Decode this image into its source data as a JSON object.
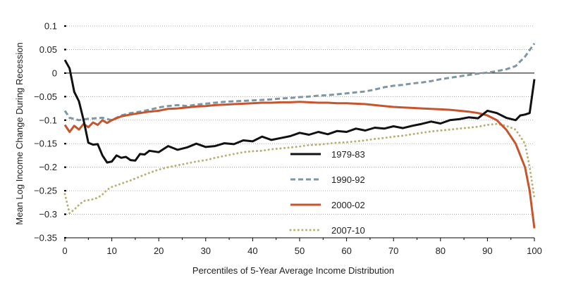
{
  "chart_data": {
    "type": "line",
    "title": "",
    "xlabel": "Percentiles of 5-Year Average Income Distribution",
    "ylabel": "Mean Log Income Change During Recession",
    "xlim": [
      0,
      100
    ],
    "ylim": [
      -0.35,
      0.1
    ],
    "x_ticks": [
      0,
      10,
      20,
      30,
      40,
      50,
      60,
      70,
      80,
      90,
      100
    ],
    "x_tick_labels": [
      "0",
      "10",
      "20",
      "30",
      "40",
      "50",
      "60",
      "70",
      "80",
      "90",
      "100"
    ],
    "y_ticks": [
      0.1,
      0.05,
      0,
      -0.05,
      -0.1,
      -0.15,
      -0.2,
      -0.25,
      -0.3,
      -0.35
    ],
    "y_tick_labels": [
      "0.1",
      "0.05",
      "0",
      "−0.05",
      "−0.1",
      "−0.15",
      "−0.2",
      "−0.25",
      "−0.3",
      "−0.35"
    ],
    "grid": "horizontal dotted",
    "zero_line": true,
    "legend_position": "center",
    "series": [
      {
        "name": "1979-83",
        "color": "#111111",
        "style": "solid",
        "points": [
          [
            0,
            0.028
          ],
          [
            1,
            0.01
          ],
          [
            2,
            -0.04
          ],
          [
            3,
            -0.06
          ],
          [
            4,
            -0.1
          ],
          [
            5,
            -0.148
          ],
          [
            6,
            -0.152
          ],
          [
            7,
            -0.151
          ],
          [
            8,
            -0.175
          ],
          [
            9,
            -0.19
          ],
          [
            10,
            -0.188
          ],
          [
            11,
            -0.175
          ],
          [
            12,
            -0.18
          ],
          [
            13,
            -0.178
          ],
          [
            14,
            -0.185
          ],
          [
            15,
            -0.186
          ],
          [
            16,
            -0.172
          ],
          [
            17,
            -0.173
          ],
          [
            18,
            -0.165
          ],
          [
            20,
            -0.168
          ],
          [
            22,
            -0.155
          ],
          [
            24,
            -0.163
          ],
          [
            26,
            -0.158
          ],
          [
            28,
            -0.15
          ],
          [
            30,
            -0.157
          ],
          [
            32,
            -0.155
          ],
          [
            34,
            -0.149
          ],
          [
            36,
            -0.151
          ],
          [
            38,
            -0.143
          ],
          [
            40,
            -0.145
          ],
          [
            42,
            -0.135
          ],
          [
            44,
            -0.142
          ],
          [
            46,
            -0.138
          ],
          [
            48,
            -0.134
          ],
          [
            50,
            -0.127
          ],
          [
            52,
            -0.131
          ],
          [
            54,
            -0.125
          ],
          [
            56,
            -0.13
          ],
          [
            58,
            -0.123
          ],
          [
            60,
            -0.125
          ],
          [
            62,
            -0.118
          ],
          [
            64,
            -0.122
          ],
          [
            66,
            -0.116
          ],
          [
            68,
            -0.118
          ],
          [
            70,
            -0.113
          ],
          [
            72,
            -0.117
          ],
          [
            74,
            -0.112
          ],
          [
            76,
            -0.108
          ],
          [
            78,
            -0.103
          ],
          [
            80,
            -0.107
          ],
          [
            82,
            -0.1
          ],
          [
            84,
            -0.098
          ],
          [
            86,
            -0.094
          ],
          [
            88,
            -0.096
          ],
          [
            90,
            -0.08
          ],
          [
            92,
            -0.085
          ],
          [
            94,
            -0.095
          ],
          [
            96,
            -0.1
          ],
          [
            97,
            -0.09
          ],
          [
            98,
            -0.088
          ],
          [
            99,
            -0.085
          ],
          [
            100,
            -0.013
          ]
        ]
      },
      {
        "name": "1990-92",
        "color": "#7f97a3",
        "style": "dashed",
        "points": [
          [
            0,
            -0.08
          ],
          [
            1,
            -0.095
          ],
          [
            3,
            -0.1
          ],
          [
            5,
            -0.097
          ],
          [
            8,
            -0.095
          ],
          [
            10,
            -0.1
          ],
          [
            12,
            -0.09
          ],
          [
            14,
            -0.085
          ],
          [
            16,
            -0.082
          ],
          [
            18,
            -0.078
          ],
          [
            20,
            -0.073
          ],
          [
            22,
            -0.07
          ],
          [
            24,
            -0.068
          ],
          [
            26,
            -0.07
          ],
          [
            28,
            -0.067
          ],
          [
            30,
            -0.065
          ],
          [
            32,
            -0.063
          ],
          [
            34,
            -0.061
          ],
          [
            36,
            -0.06
          ],
          [
            38,
            -0.059
          ],
          [
            40,
            -0.058
          ],
          [
            42,
            -0.057
          ],
          [
            44,
            -0.056
          ],
          [
            46,
            -0.054
          ],
          [
            48,
            -0.053
          ],
          [
            50,
            -0.051
          ],
          [
            52,
            -0.05
          ],
          [
            54,
            -0.048
          ],
          [
            56,
            -0.047
          ],
          [
            58,
            -0.045
          ],
          [
            60,
            -0.043
          ],
          [
            62,
            -0.041
          ],
          [
            64,
            -0.039
          ],
          [
            66,
            -0.035
          ],
          [
            68,
            -0.03
          ],
          [
            70,
            -0.027
          ],
          [
            72,
            -0.025
          ],
          [
            74,
            -0.022
          ],
          [
            76,
            -0.02
          ],
          [
            78,
            -0.017
          ],
          [
            80,
            -0.013
          ],
          [
            82,
            -0.01
          ],
          [
            84,
            -0.007
          ],
          [
            86,
            -0.004
          ],
          [
            88,
            -0.001
          ],
          [
            90,
            0.001
          ],
          [
            92,
            0.004
          ],
          [
            94,
            0.008
          ],
          [
            96,
            0.015
          ],
          [
            98,
            0.035
          ],
          [
            100,
            0.063
          ]
        ]
      },
      {
        "name": "2000-02",
        "color": "#c6552e",
        "style": "solid",
        "points": [
          [
            0,
            -0.11
          ],
          [
            1,
            -0.125
          ],
          [
            2,
            -0.112
          ],
          [
            3,
            -0.12
          ],
          [
            4,
            -0.108
          ],
          [
            5,
            -0.115
          ],
          [
            6,
            -0.105
          ],
          [
            7,
            -0.11
          ],
          [
            8,
            -0.1
          ],
          [
            9,
            -0.106
          ],
          [
            10,
            -0.1
          ],
          [
            12,
            -0.092
          ],
          [
            14,
            -0.088
          ],
          [
            16,
            -0.085
          ],
          [
            18,
            -0.082
          ],
          [
            20,
            -0.08
          ],
          [
            22,
            -0.076
          ],
          [
            24,
            -0.075
          ],
          [
            26,
            -0.073
          ],
          [
            28,
            -0.071
          ],
          [
            30,
            -0.07
          ],
          [
            32,
            -0.068
          ],
          [
            34,
            -0.067
          ],
          [
            36,
            -0.066
          ],
          [
            38,
            -0.065
          ],
          [
            40,
            -0.064
          ],
          [
            42,
            -0.063
          ],
          [
            44,
            -0.063
          ],
          [
            46,
            -0.062
          ],
          [
            48,
            -0.062
          ],
          [
            50,
            -0.061
          ],
          [
            52,
            -0.062
          ],
          [
            54,
            -0.063
          ],
          [
            56,
            -0.063
          ],
          [
            58,
            -0.064
          ],
          [
            60,
            -0.064
          ],
          [
            62,
            -0.065
          ],
          [
            64,
            -0.066
          ],
          [
            66,
            -0.068
          ],
          [
            68,
            -0.07
          ],
          [
            70,
            -0.072
          ],
          [
            72,
            -0.073
          ],
          [
            74,
            -0.074
          ],
          [
            76,
            -0.075
          ],
          [
            78,
            -0.076
          ],
          [
            80,
            -0.077
          ],
          [
            82,
            -0.078
          ],
          [
            84,
            -0.08
          ],
          [
            86,
            -0.082
          ],
          [
            88,
            -0.085
          ],
          [
            90,
            -0.09
          ],
          [
            92,
            -0.1
          ],
          [
            94,
            -0.12
          ],
          [
            96,
            -0.15
          ],
          [
            98,
            -0.2
          ],
          [
            99,
            -0.25
          ],
          [
            100,
            -0.33
          ]
        ]
      },
      {
        "name": "2007-10",
        "color": "#b7b377",
        "style": "dotted",
        "points": [
          [
            0,
            -0.257
          ],
          [
            1,
            -0.298
          ],
          [
            2,
            -0.29
          ],
          [
            3,
            -0.28
          ],
          [
            4,
            -0.272
          ],
          [
            5,
            -0.27
          ],
          [
            6,
            -0.268
          ],
          [
            7,
            -0.265
          ],
          [
            8,
            -0.258
          ],
          [
            9,
            -0.248
          ],
          [
            10,
            -0.242
          ],
          [
            12,
            -0.235
          ],
          [
            14,
            -0.228
          ],
          [
            16,
            -0.22
          ],
          [
            18,
            -0.212
          ],
          [
            20,
            -0.205
          ],
          [
            22,
            -0.2
          ],
          [
            24,
            -0.196
          ],
          [
            26,
            -0.192
          ],
          [
            28,
            -0.188
          ],
          [
            30,
            -0.185
          ],
          [
            32,
            -0.18
          ],
          [
            34,
            -0.176
          ],
          [
            36,
            -0.172
          ],
          [
            38,
            -0.168
          ],
          [
            40,
            -0.166
          ],
          [
            42,
            -0.165
          ],
          [
            44,
            -0.162
          ],
          [
            46,
            -0.16
          ],
          [
            48,
            -0.158
          ],
          [
            50,
            -0.156
          ],
          [
            52,
            -0.153
          ],
          [
            54,
            -0.152
          ],
          [
            56,
            -0.15
          ],
          [
            58,
            -0.148
          ],
          [
            60,
            -0.147
          ],
          [
            62,
            -0.145
          ],
          [
            64,
            -0.143
          ],
          [
            66,
            -0.14
          ],
          [
            68,
            -0.138
          ],
          [
            70,
            -0.135
          ],
          [
            72,
            -0.133
          ],
          [
            74,
            -0.13
          ],
          [
            76,
            -0.127
          ],
          [
            78,
            -0.124
          ],
          [
            80,
            -0.122
          ],
          [
            82,
            -0.12
          ],
          [
            84,
            -0.118
          ],
          [
            86,
            -0.116
          ],
          [
            88,
            -0.114
          ],
          [
            90,
            -0.11
          ],
          [
            92,
            -0.108
          ],
          [
            94,
            -0.112
          ],
          [
            96,
            -0.12
          ],
          [
            97,
            -0.135
          ],
          [
            98,
            -0.15
          ],
          [
            99,
            -0.2
          ],
          [
            100,
            -0.265
          ]
        ]
      }
    ]
  }
}
